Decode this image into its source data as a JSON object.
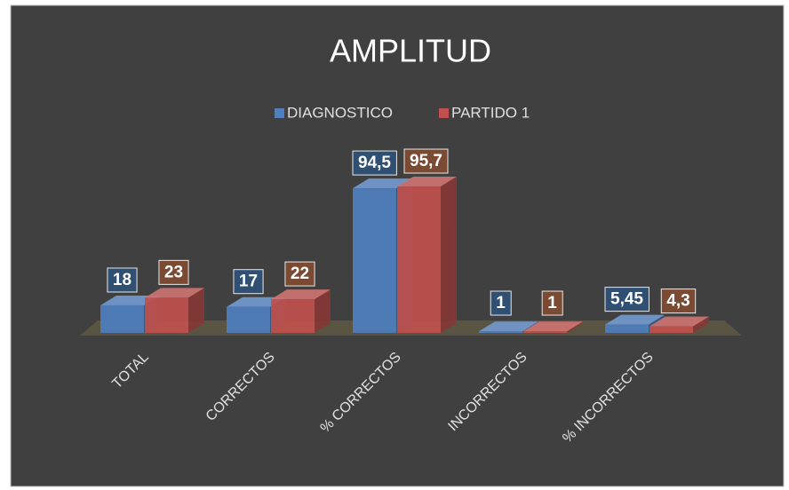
{
  "chart_data": {
    "type": "bar3d",
    "title": "AMPLITUD",
    "categories": [
      "TOTAL",
      "CORRECTOS",
      "% CORRECTOS",
      "INCORRECTOS",
      "% INCORRECTOS"
    ],
    "series": [
      {
        "name": "DIAGNOSTICO",
        "color": "#4f7fbf",
        "values": [
          18,
          17,
          94.5,
          1,
          5.45
        ],
        "value_labels": [
          "18",
          "17",
          "94,5",
          "1",
          "5,45"
        ]
      },
      {
        "name": "PARTIDO 1",
        "color": "#c0504d",
        "values": [
          23,
          22,
          95.7,
          1,
          4.3
        ],
        "value_labels": [
          "23",
          "22",
          "95,7",
          "1",
          "4,3"
        ]
      }
    ]
  }
}
